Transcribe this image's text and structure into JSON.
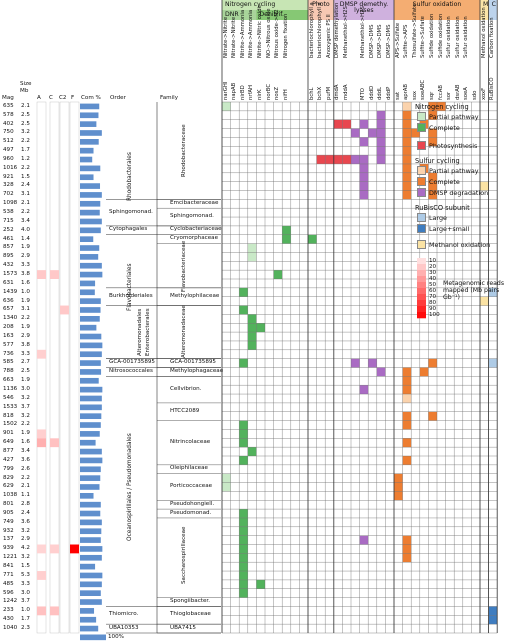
{
  "colors": {
    "nitrogen_partial": "#c9e9c7",
    "nitrogen_complete": "#52b25c",
    "photosynthesis": "#e8474f",
    "sulfur_partial": "#fbd3ad",
    "sulfur_complete": "#ed7d31",
    "dmsp": "#a96bc3",
    "rubisco_large": "#aecbe6",
    "rubisco_small": "#3f7dc0",
    "methanol": "#fbe3a4",
    "bar": "#5f8fcd",
    "grid": "#6d6d6d",
    "header_nitrogen": "#c7e5b4",
    "header_dnr": "#a8d49a",
    "header_denitr": "#86c874",
    "header_photo": "#f7c8b3",
    "header_dmsp": "#cfb1de",
    "header_sulfur": "#f4ad72",
    "header_m": "#fbe6a8",
    "header_c": "#bcd3ec"
  },
  "column_groups": [
    {
      "label": "Nitrogen cycling",
      "color": "header_nitrogen",
      "cols": [
        0,
        9
      ]
    },
    {
      "label": "DNR",
      "color": "header_dnr",
      "cols": [
        0,
        4
      ]
    },
    {
      "label": "Denitrif.",
      "color": "header_denitr",
      "cols": [
        4,
        9
      ]
    },
    {
      "label": "Photo",
      "color": "header_photo",
      "cols": [
        10,
        12
      ]
    },
    {
      "label": "DMSP demethy. lyases",
      "color": "header_dmsp",
      "cols": [
        13,
        19
      ]
    },
    {
      "label": "Sulfur oxidation",
      "color": "header_sulfur",
      "cols": [
        20,
        29
      ]
    },
    {
      "label": "M",
      "color": "header_m",
      "cols": [
        30,
        30
      ]
    },
    {
      "label": "C",
      "color": "header_c",
      "cols": [
        31,
        31
      ]
    }
  ],
  "columns": [
    {
      "desc": "Nitrate->Nitrite",
      "gene": "narGHI"
    },
    {
      "desc": "Nitrate->Nitrite",
      "gene": "napAB"
    },
    {
      "desc": "Nitrite->Ammonia",
      "gene": "nirBD"
    },
    {
      "desc": "Nitrite->Ammonia",
      "gene": "nrfAH"
    },
    {
      "desc": "Nitrite->Nitric oxide",
      "gene": "nirK"
    },
    {
      "desc": "NO->Nitrous oxide",
      "gene": "norBC"
    },
    {
      "desc": "Nitrous oxide->N2",
      "gene": "nosZ"
    },
    {
      "desc": "Nitrogen fixation",
      "gene": "nifH"
    },
    {
      "desc": "",
      "gene": ""
    },
    {
      "desc": "",
      "gene": ""
    },
    {
      "desc": "bacteriochlorophyll a",
      "gene": "bchL"
    },
    {
      "desc": "bacteriochlorophyll a",
      "gene": "bchX"
    },
    {
      "desc": "Anoxygenic PS II",
      "gene": "pufM"
    },
    {
      "desc": "DMSP demethylation",
      "gene": "dmdA"
    },
    {
      "desc": "Methanethiol->H2S",
      "gene": "mddA"
    },
    {
      "desc": "",
      "gene": ""
    },
    {
      "desc": "Methanethiol->H2S",
      "gene": "MTO"
    },
    {
      "desc": "DMSP->DMS",
      "gene": "dddD"
    },
    {
      "desc": "DMSP->DMS",
      "gene": "dddL"
    },
    {
      "desc": "DMSP->DMS",
      "gene": "dddP"
    },
    {
      "desc": "APS->Sulfate",
      "gene": "sat"
    },
    {
      "desc": "Sulfite->APS",
      "gene": "aprAB"
    },
    {
      "desc": "Thiosulfate->Sulfate",
      "gene": "sox"
    },
    {
      "desc": "Sulfite->Sulfate",
      "gene": "soeABC"
    },
    {
      "desc": "Sulfide oxidation",
      "gene": "sqr"
    },
    {
      "desc": "Sulfide oxidation",
      "gene": "fccAB"
    },
    {
      "desc": "Sulfur oxidation",
      "gene": "sor"
    },
    {
      "desc": "Sulfur oxidation",
      "gene": "dsrAB"
    },
    {
      "desc": "Sulfur oxidation",
      "gene": "soeA"
    },
    {
      "desc": "",
      "gene": "sdo"
    },
    {
      "desc": "Methanol oxidation",
      "gene": "xoxF"
    },
    {
      "desc": "Carbon fixation",
      "gene": "RuBisCO"
    }
  ],
  "table_headers": {
    "mag": "Mag",
    "size": "Size",
    "mb": "Mb",
    "a": "A",
    "c": "C",
    "c2": "C2",
    "f": "F",
    "com": "Com %",
    "order": "Order",
    "family": "Family",
    "scale": "100%"
  },
  "rows": [
    {
      "mag": "635",
      "mb": "2.1",
      "com": 74
    },
    {
      "mag": "578",
      "mb": "2.5",
      "com": 71
    },
    {
      "mag": "402",
      "mb": "2.5",
      "com": 63
    },
    {
      "mag": "750",
      "mb": "3.2",
      "com": 84
    },
    {
      "mag": "512",
      "mb": "2.2",
      "com": 72
    },
    {
      "mag": "497",
      "mb": "1.7",
      "com": 52
    },
    {
      "mag": "960",
      "mb": "1.2",
      "com": 47
    },
    {
      "mag": "1016",
      "mb": "2.2",
      "com": 78
    },
    {
      "mag": "921",
      "mb": "1.5",
      "com": 52
    },
    {
      "mag": "328",
      "mb": "2.4",
      "com": 77
    },
    {
      "mag": "702",
      "mb": "3.1",
      "com": 84
    },
    {
      "mag": "1098",
      "mb": "2.1",
      "com": 78
    },
    {
      "mag": "538",
      "mb": "2.2",
      "com": 76
    },
    {
      "mag": "715",
      "mb": "3.4",
      "com": 84
    },
    {
      "mag": "252",
      "mb": "4.0",
      "com": 80
    },
    {
      "mag": "461",
      "mb": "1.4",
      "com": 51
    },
    {
      "mag": "857",
      "mb": "1.9",
      "com": 74
    },
    {
      "mag": "895",
      "mb": "2.9",
      "com": 70
    },
    {
      "mag": "432",
      "mb": "3.3",
      "com": 84
    },
    {
      "mag": "1573",
      "mb": "3.8",
      "com": 86
    },
    {
      "mag": "631",
      "mb": "1.6",
      "com": 58
    },
    {
      "mag": "1439",
      "mb": "1.0",
      "com": 57
    },
    {
      "mag": "636",
      "mb": "1.9",
      "com": 80
    },
    {
      "mag": "657",
      "mb": "3.1",
      "com": 79
    },
    {
      "mag": "1340",
      "mb": "2.2",
      "com": 76
    },
    {
      "mag": "208",
      "mb": "1.9",
      "com": 63
    },
    {
      "mag": "163",
      "mb": "2.9",
      "com": 82
    },
    {
      "mag": "577",
      "mb": "3.8",
      "com": 86
    },
    {
      "mag": "736",
      "mb": "3.3",
      "com": 84
    },
    {
      "mag": "585",
      "mb": "2.7",
      "com": 80
    },
    {
      "mag": "788",
      "mb": "2.5",
      "com": 81
    },
    {
      "mag": "663",
      "mb": "1.9",
      "com": 72
    },
    {
      "mag": "1136",
      "mb": "3.0",
      "com": 86
    },
    {
      "mag": "546",
      "mb": "3.2",
      "com": 84
    },
    {
      "mag": "1533",
      "mb": "3.7",
      "com": 84
    },
    {
      "mag": "818",
      "mb": "3.2",
      "com": 82
    },
    {
      "mag": "1502",
      "mb": "2.2",
      "com": 80
    },
    {
      "mag": "901",
      "mb": "1.9",
      "com": 76
    },
    {
      "mag": "649",
      "mb": "1.6",
      "com": 60
    },
    {
      "mag": "877",
      "mb": "3.4",
      "com": 84
    },
    {
      "mag": "427",
      "mb": "3.6",
      "com": 86
    },
    {
      "mag": "799",
      "mb": "2.6",
      "com": 80
    },
    {
      "mag": "829",
      "mb": "2.2",
      "com": 78
    },
    {
      "mag": "629",
      "mb": "2.1",
      "com": 75
    },
    {
      "mag": "1038",
      "mb": "1.1",
      "com": 52
    },
    {
      "mag": "801",
      "mb": "2.8",
      "com": 80
    },
    {
      "mag": "905",
      "mb": "2.4",
      "com": 78
    },
    {
      "mag": "749",
      "mb": "3.6",
      "com": 84
    },
    {
      "mag": "932",
      "mb": "3.2",
      "com": 82
    },
    {
      "mag": "137",
      "mb": "2.9",
      "com": 80
    },
    {
      "mag": "939",
      "mb": "4.2",
      "com": 86
    },
    {
      "mag": "1221",
      "mb": "3.2",
      "com": 84
    },
    {
      "mag": "841",
      "mb": "1.5",
      "com": 58
    },
    {
      "mag": "771",
      "mb": "5.3",
      "com": 86
    },
    {
      "mag": "485",
      "mb": "3.3",
      "com": 84
    },
    {
      "mag": "596",
      "mb": "3.0",
      "com": 80
    },
    {
      "mag": "1242",
      "mb": "3.7",
      "com": 84
    },
    {
      "mag": "233",
      "mb": "1.0",
      "com": 54
    },
    {
      "mag": "430",
      "mb": "1.7",
      "com": 62
    },
    {
      "mag": "1040",
      "mb": "2.3",
      "com": 70
    }
  ],
  "heat": [
    {
      "row": 19,
      "col": 0,
      "v": 0.15
    },
    {
      "row": 19,
      "col": 1,
      "v": 0.15
    },
    {
      "row": 23,
      "col": 2,
      "v": 0.15
    },
    {
      "row": 28,
      "col": 0,
      "v": 0.12
    },
    {
      "row": 37,
      "col": 0,
      "v": 0.12
    },
    {
      "row": 38,
      "col": 0,
      "v": 0.25
    },
    {
      "row": 38,
      "col": 1,
      "v": 0.18
    },
    {
      "row": 50,
      "col": 0,
      "v": 0.1
    },
    {
      "row": 50,
      "col": 1,
      "v": 0.12
    },
    {
      "row": 50,
      "col": 3,
      "v": 1.0
    },
    {
      "row": 53,
      "col": 0,
      "v": 0.12
    },
    {
      "row": 57,
      "col": 0,
      "v": 0.18
    },
    {
      "row": 57,
      "col": 1,
      "v": 0.18
    }
  ],
  "orders": [
    {
      "label": "Rhodobacterales",
      "start": 0,
      "end": 10
    },
    {
      "label": "Sphingomonad.",
      "start": 11,
      "end": 13
    },
    {
      "label": "Cytophagales",
      "start": 14,
      "end": 14
    },
    {
      "label": "Flavobacteriales",
      "start": 15,
      "end": 20
    },
    {
      "label": "Burkholderiales",
      "start": 21,
      "end": 22
    },
    {
      "label": "Alteromonadales",
      "start": 23,
      "end": 28
    },
    {
      "label": "Enterobacterales",
      "start": 23,
      "end": 28
    },
    {
      "label": "GCA-001735895",
      "start": 29,
      "end": 29
    },
    {
      "label": "Nitrosococcales",
      "start": 30,
      "end": 30
    },
    {
      "label": "Oceanospirillales / Pseudomonadales",
      "start": 31,
      "end": 56
    },
    {
      "label": "Thiomicro.",
      "start": 57,
      "end": 58
    },
    {
      "label": "UBA10353",
      "start": 59,
      "end": 59
    }
  ],
  "families": [
    {
      "label": "Rhodobacteraceae",
      "start": 0,
      "end": 10,
      "vertical": true
    },
    {
      "label": "Emcibacteraceae",
      "start": 11,
      "end": 11,
      "vertical": false
    },
    {
      "label": "Sphingomonad.",
      "start": 12,
      "end": 13,
      "vertical": false
    },
    {
      "label": "Cyclobacteriaceae",
      "start": 14,
      "end": 14,
      "vertical": false
    },
    {
      "label": "Cryomorphaceae",
      "start": 15,
      "end": 15,
      "vertical": false
    },
    {
      "label": "Flavobacteriaceae",
      "start": 16,
      "end": 20,
      "vertical": true
    },
    {
      "label": "Methylophilaceae",
      "start": 21,
      "end": 22,
      "vertical": false
    },
    {
      "label": "Alteromonadaceae",
      "start": 23,
      "end": 28,
      "vertical": true
    },
    {
      "label": "GCA-001735895",
      "start": 29,
      "end": 29,
      "vertical": false
    },
    {
      "label": "Methylophagaceae",
      "start": 30,
      "end": 30,
      "vertical": false
    },
    {
      "label": "Cellvibrion.",
      "start": 31,
      "end": 33,
      "vertical": false
    },
    {
      "label": "HTCC2089",
      "start": 34,
      "end": 35,
      "vertical": false
    },
    {
      "label": "Nitrincolaceae",
      "start": 36,
      "end": 40,
      "vertical": false
    },
    {
      "label": "Oleiphilaceae",
      "start": 41,
      "end": 41,
      "vertical": false
    },
    {
      "label": "Porticoccaceae",
      "start": 42,
      "end": 44,
      "vertical": false
    },
    {
      "label": "Pseudohongiell.",
      "start": 45,
      "end": 45,
      "vertical": false
    },
    {
      "label": "Pseudomonad.",
      "start": 46,
      "end": 46,
      "vertical": false
    },
    {
      "label": "Saccharospirillaceae",
      "start": 47,
      "end": 55,
      "vertical": true
    },
    {
      "label": "Spongiibacter.",
      "start": 56,
      "end": 56,
      "vertical": false
    },
    {
      "label": "Thioglobaceae",
      "start": 57,
      "end": 58,
      "vertical": false
    },
    {
      "label": "UBA7415",
      "start": 59,
      "end": 59,
      "vertical": false
    }
  ],
  "cells": [
    {
      "row": 0,
      "col": 0,
      "k": "np"
    },
    {
      "row": 0,
      "col": 21,
      "k": "sp"
    },
    {
      "row": 0,
      "col": 24,
      "k": "sc"
    },
    {
      "row": 0,
      "col": 25,
      "k": "sc"
    },
    {
      "row": 1,
      "col": 18,
      "k": "d"
    },
    {
      "row": 1,
      "col": 21,
      "k": "sc"
    },
    {
      "row": 1,
      "col": 24,
      "k": "sc"
    },
    {
      "row": 2,
      "col": 13,
      "k": "p"
    },
    {
      "row": 2,
      "col": 14,
      "k": "p"
    },
    {
      "row": 2,
      "col": 16,
      "k": "d"
    },
    {
      "row": 2,
      "col": 18,
      "k": "d"
    },
    {
      "row": 2,
      "col": 21,
      "k": "sc"
    },
    {
      "row": 2,
      "col": 23,
      "k": "sc"
    },
    {
      "row": 3,
      "col": 15,
      "k": "d"
    },
    {
      "row": 3,
      "col": 17,
      "k": "d"
    },
    {
      "row": 3,
      "col": 18,
      "k": "d"
    },
    {
      "row": 3,
      "col": 21,
      "k": "sc"
    },
    {
      "row": 3,
      "col": 22,
      "k": "sc"
    },
    {
      "row": 3,
      "col": 24,
      "k": "sc"
    },
    {
      "row": 4,
      "col": 16,
      "k": "d"
    },
    {
      "row": 4,
      "col": 18,
      "k": "d"
    },
    {
      "row": 4,
      "col": 21,
      "k": "sc"
    },
    {
      "row": 4,
      "col": 24,
      "k": "sc"
    },
    {
      "row": 5,
      "col": 18,
      "k": "d"
    },
    {
      "row": 5,
      "col": 21,
      "k": "sc"
    },
    {
      "row": 6,
      "col": 11,
      "k": "p"
    },
    {
      "row": 6,
      "col": 12,
      "k": "p"
    },
    {
      "row": 6,
      "col": 13,
      "k": "p"
    },
    {
      "row": 6,
      "col": 14,
      "k": "p"
    },
    {
      "row": 6,
      "col": 15,
      "k": "d"
    },
    {
      "row": 6,
      "col": 16,
      "k": "d"
    },
    {
      "row": 6,
      "col": 18,
      "k": "d"
    },
    {
      "row": 6,
      "col": 21,
      "k": "sc"
    },
    {
      "row": 7,
      "col": 16,
      "k": "d"
    },
    {
      "row": 7,
      "col": 21,
      "k": "sc"
    },
    {
      "row": 7,
      "col": 23,
      "k": "sc"
    },
    {
      "row": 8,
      "col": 16,
      "k": "d"
    },
    {
      "row": 8,
      "col": 21,
      "k": "sc"
    },
    {
      "row": 8,
      "col": 24,
      "k": "sc"
    },
    {
      "row": 9,
      "col": 16,
      "k": "d"
    },
    {
      "row": 9,
      "col": 21,
      "k": "sc"
    },
    {
      "row": 9,
      "col": 24,
      "k": "sc"
    },
    {
      "row": 9,
      "col": 30,
      "k": "m"
    },
    {
      "row": 10,
      "col": 16,
      "k": "d"
    },
    {
      "row": 10,
      "col": 21,
      "k": "sc"
    },
    {
      "row": 10,
      "col": 24,
      "k": "sc"
    },
    {
      "row": 14,
      "col": 7,
      "k": "nc"
    },
    {
      "row": 15,
      "col": 7,
      "k": "nc"
    },
    {
      "row": 15,
      "col": 10,
      "k": "nc"
    },
    {
      "row": 16,
      "col": 3,
      "k": "np"
    },
    {
      "row": 17,
      "col": 3,
      "k": "np"
    },
    {
      "row": 19,
      "col": 6,
      "k": "nc"
    },
    {
      "row": 21,
      "col": 2,
      "k": "nc"
    },
    {
      "row": 21,
      "col": 31,
      "k": "rl"
    },
    {
      "row": 22,
      "col": 30,
      "k": "m"
    },
    {
      "row": 23,
      "col": 2,
      "k": "nc"
    },
    {
      "row": 24,
      "col": 3,
      "k": "nc"
    },
    {
      "row": 25,
      "col": 3,
      "k": "nc"
    },
    {
      "row": 25,
      "col": 4,
      "k": "nc"
    },
    {
      "row": 26,
      "col": 3,
      "k": "nc"
    },
    {
      "row": 27,
      "col": 3,
      "k": "nc"
    },
    {
      "row": 29,
      "col": 2,
      "k": "nc"
    },
    {
      "row": 29,
      "col": 15,
      "k": "d"
    },
    {
      "row": 29,
      "col": 17,
      "k": "d"
    },
    {
      "row": 29,
      "col": 24,
      "k": "sc"
    },
    {
      "row": 29,
      "col": 31,
      "k": "rl"
    },
    {
      "row": 30,
      "col": 18,
      "k": "d"
    },
    {
      "row": 30,
      "col": 21,
      "k": "sc"
    },
    {
      "row": 30,
      "col": 23,
      "k": "sc"
    },
    {
      "row": 31,
      "col": 21,
      "k": "sc"
    },
    {
      "row": 32,
      "col": 16,
      "k": "d"
    },
    {
      "row": 32,
      "col": 21,
      "k": "sc"
    },
    {
      "row": 33,
      "col": 21,
      "k": "sp"
    },
    {
      "row": 35,
      "col": 21,
      "k": "sc"
    },
    {
      "row": 35,
      "col": 24,
      "k": "sc"
    },
    {
      "row": 36,
      "col": 2,
      "k": "nc"
    },
    {
      "row": 36,
      "col": 21,
      "k": "sc"
    },
    {
      "row": 37,
      "col": 2,
      "k": "nc"
    },
    {
      "row": 38,
      "col": 2,
      "k": "nc"
    },
    {
      "row": 38,
      "col": 21,
      "k": "sc"
    },
    {
      "row": 39,
      "col": 3,
      "k": "nc"
    },
    {
      "row": 40,
      "col": 2,
      "k": "nc"
    },
    {
      "row": 40,
      "col": 21,
      "k": "sc"
    },
    {
      "row": 42,
      "col": 0,
      "k": "np"
    },
    {
      "row": 42,
      "col": 20,
      "k": "sc"
    },
    {
      "row": 43,
      "col": 0,
      "k": "np"
    },
    {
      "row": 43,
      "col": 20,
      "k": "sc"
    },
    {
      "row": 44,
      "col": 20,
      "k": "sc"
    },
    {
      "row": 46,
      "col": 2,
      "k": "nc"
    },
    {
      "row": 47,
      "col": 2,
      "k": "nc"
    },
    {
      "row": 48,
      "col": 2,
      "k": "nc"
    },
    {
      "row": 49,
      "col": 2,
      "k": "nc"
    },
    {
      "row": 49,
      "col": 16,
      "k": "d"
    },
    {
      "row": 49,
      "col": 21,
      "k": "sc"
    },
    {
      "row": 50,
      "col": 2,
      "k": "nc"
    },
    {
      "row": 50,
      "col": 21,
      "k": "sc"
    },
    {
      "row": 51,
      "col": 2,
      "k": "nc"
    },
    {
      "row": 51,
      "col": 21,
      "k": "sc"
    },
    {
      "row": 52,
      "col": 2,
      "k": "nc"
    },
    {
      "row": 53,
      "col": 2,
      "k": "nc"
    },
    {
      "row": 54,
      "col": 2,
      "k": "nc"
    },
    {
      "row": 54,
      "col": 4,
      "k": "nc"
    },
    {
      "row": 55,
      "col": 2,
      "k": "nc"
    },
    {
      "row": 57,
      "col": 31,
      "k": "rs"
    },
    {
      "row": 58,
      "col": 31,
      "k": "rs"
    }
  ],
  "legend": {
    "nitrogen_title": "Nitrogen cycling",
    "partial": "Partial pathway",
    "complete": "Complete",
    "photosynthesis": "Photosynthesis",
    "sulfur_title": "Sulfur cycling",
    "sulfur_partial": "Partial pathway",
    "sulfur_complete": "Complete",
    "dmsp": "DMSP degradation",
    "rubisco_title": "RuBisCO subunit",
    "large": "Large",
    "large_small": "Large+small",
    "methanol": "Methanol oxidation",
    "reads_title": "Metagenomic reads mapped (Mb pairs Gb⁻¹)",
    "scale_ticks": [
      "10",
      "20",
      "30",
      "40",
      "50",
      "60",
      "70",
      "80",
      "90",
      "100"
    ]
  }
}
